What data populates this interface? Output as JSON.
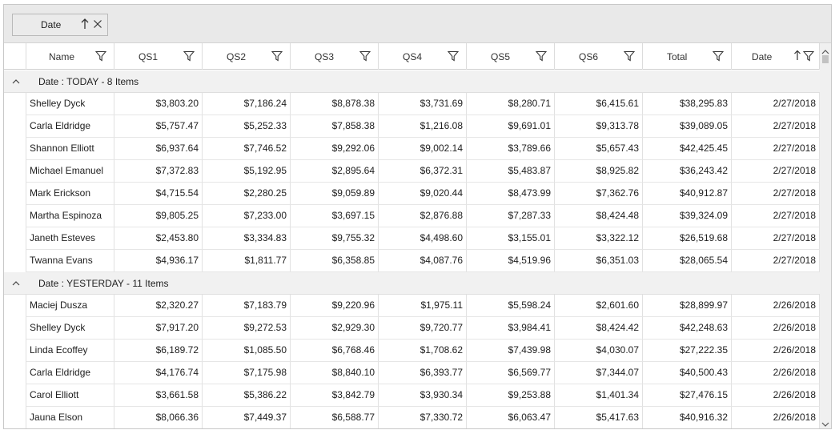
{
  "group_panel": {
    "chip_label": "Date",
    "chip_sort_icon": "arrow-up-icon",
    "chip_close_icon": "close-icon"
  },
  "columns": [
    {
      "key": "name",
      "label": "Name",
      "icon": "filter-icon"
    },
    {
      "key": "qs1",
      "label": "QS1",
      "icon": "filter-icon"
    },
    {
      "key": "qs2",
      "label": "QS2",
      "icon": "filter-icon"
    },
    {
      "key": "qs3",
      "label": "QS3",
      "icon": "filter-icon"
    },
    {
      "key": "qs4",
      "label": "QS4",
      "icon": "filter-icon"
    },
    {
      "key": "qs5",
      "label": "QS5",
      "icon": "filter-icon"
    },
    {
      "key": "qs6",
      "label": "QS6",
      "icon": "filter-icon"
    },
    {
      "key": "total",
      "label": "Total",
      "icon": "filter-icon"
    },
    {
      "key": "date",
      "label": "Date",
      "icon": "filter-icon",
      "sort": "ascending"
    }
  ],
  "groups": [
    {
      "caption": "Date : TODAY - 8 Items",
      "expanded": true,
      "rows": [
        [
          "Shelley Dyck",
          "$3,803.20",
          "$7,186.24",
          "$8,878.38",
          "$3,731.69",
          "$8,280.71",
          "$6,415.61",
          "$38,295.83",
          "2/27/2018"
        ],
        [
          "Carla Eldridge",
          "$5,757.47",
          "$5,252.33",
          "$7,858.38",
          "$1,216.08",
          "$9,691.01",
          "$9,313.78",
          "$39,089.05",
          "2/27/2018"
        ],
        [
          "Shannon Elliott",
          "$6,937.64",
          "$7,746.52",
          "$9,292.06",
          "$9,002.14",
          "$3,789.66",
          "$5,657.43",
          "$42,425.45",
          "2/27/2018"
        ],
        [
          "Michael Emanuel",
          "$7,372.83",
          "$5,192.95",
          "$2,895.64",
          "$6,372.31",
          "$5,483.87",
          "$8,925.82",
          "$36,243.42",
          "2/27/2018"
        ],
        [
          "Mark Erickson",
          "$4,715.54",
          "$2,280.25",
          "$9,059.89",
          "$9,020.44",
          "$8,473.99",
          "$7,362.76",
          "$40,912.87",
          "2/27/2018"
        ],
        [
          "Martha Espinoza",
          "$9,805.25",
          "$7,233.00",
          "$3,697.15",
          "$2,876.88",
          "$7,287.33",
          "$8,424.48",
          "$39,324.09",
          "2/27/2018"
        ],
        [
          "Janeth Esteves",
          "$2,453.80",
          "$3,334.83",
          "$9,755.32",
          "$4,498.60",
          "$3,155.01",
          "$3,322.12",
          "$26,519.68",
          "2/27/2018"
        ],
        [
          "Twanna Evans",
          "$4,936.17",
          "$1,811.77",
          "$6,358.85",
          "$4,087.76",
          "$4,519.96",
          "$6,351.03",
          "$28,065.54",
          "2/27/2018"
        ]
      ]
    },
    {
      "caption": "Date : YESTERDAY - 11 Items",
      "expanded": true,
      "rows": [
        [
          "Maciej Dusza",
          "$2,320.27",
          "$7,183.79",
          "$9,220.96",
          "$1,975.11",
          "$5,598.24",
          "$2,601.60",
          "$28,899.97",
          "2/26/2018"
        ],
        [
          "Shelley Dyck",
          "$7,917.20",
          "$9,272.53",
          "$2,929.30",
          "$9,720.77",
          "$3,984.41",
          "$8,424.42",
          "$42,248.63",
          "2/26/2018"
        ],
        [
          "Linda Ecoffey",
          "$6,189.72",
          "$1,085.50",
          "$6,768.46",
          "$1,708.62",
          "$7,439.98",
          "$4,030.07",
          "$27,222.35",
          "2/26/2018"
        ],
        [
          "Carla Eldridge",
          "$4,176.74",
          "$7,175.98",
          "$8,840.10",
          "$6,393.77",
          "$6,569.77",
          "$7,344.07",
          "$40,500.43",
          "2/26/2018"
        ],
        [
          "Carol Elliott",
          "$3,661.58",
          "$5,386.22",
          "$3,842.79",
          "$3,930.34",
          "$9,253.88",
          "$1,401.34",
          "$27,476.15",
          "2/26/2018"
        ],
        [
          "Jauna Elson",
          "$8,066.36",
          "$7,449.37",
          "$6,588.77",
          "$7,330.72",
          "$6,063.47",
          "$5,417.63",
          "$40,916.32",
          "2/26/2018"
        ]
      ]
    }
  ],
  "scrollbar": {
    "up_icon": "chevron-up-icon",
    "down_icon": "chevron-down-icon"
  }
}
